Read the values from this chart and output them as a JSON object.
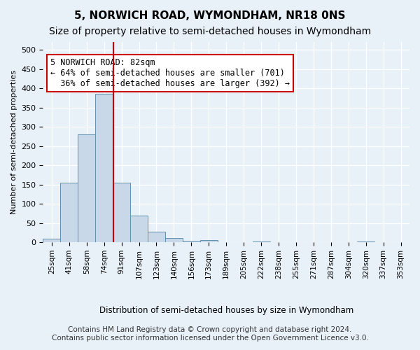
{
  "title": "5, NORWICH ROAD, WYMONDHAM, NR18 0NS",
  "subtitle": "Size of property relative to semi-detached houses in Wymondham",
  "xlabel": "Distribution of semi-detached houses by size in Wymondham",
  "ylabel": "Number of semi-detached properties",
  "bins": [
    "25sqm",
    "41sqm",
    "58sqm",
    "74sqm",
    "91sqm",
    "107sqm",
    "123sqm",
    "140sqm",
    "156sqm",
    "173sqm",
    "189sqm",
    "205sqm",
    "222sqm",
    "238sqm",
    "255sqm",
    "271sqm",
    "287sqm",
    "304sqm",
    "320sqm",
    "337sqm",
    "353sqm"
  ],
  "values": [
    10,
    155,
    280,
    385,
    155,
    70,
    28,
    12,
    5,
    6,
    0,
    0,
    3,
    0,
    0,
    0,
    0,
    0,
    3,
    0,
    0
  ],
  "bar_color": "#c8d8e8",
  "bar_edge_color": "#6090b0",
  "vline_x_index": 3.52,
  "vline_color": "#cc0000",
  "annotation_text": "5 NORWICH ROAD: 82sqm\n← 64% of semi-detached houses are smaller (701)\n  36% of semi-detached houses are larger (392) →",
  "annotation_box_color": "#ffffff",
  "annotation_box_edge_color": "#cc0000",
  "ylim": [
    0,
    520
  ],
  "yticks": [
    0,
    50,
    100,
    150,
    200,
    250,
    300,
    350,
    400,
    450,
    500
  ],
  "footer_line1": "Contains HM Land Registry data © Crown copyright and database right 2024.",
  "footer_line2": "Contains public sector information licensed under the Open Government Licence v3.0.",
  "bg_color": "#e8f0f8",
  "plot_bg_color": "#e8f0f8",
  "grid_color": "#ffffff",
  "title_fontsize": 11,
  "subtitle_fontsize": 10,
  "annotation_fontsize": 8.5,
  "footer_fontsize": 7.5
}
